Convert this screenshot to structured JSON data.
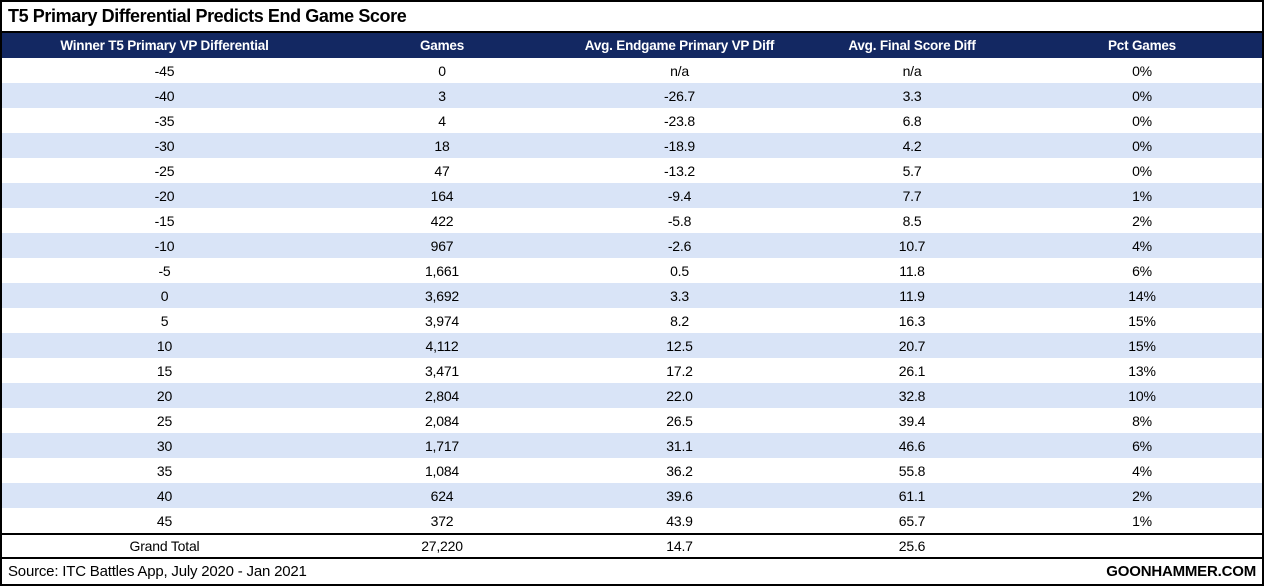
{
  "page": {
    "title_bar": "T5 Primary Differential Predicts End Game Score"
  },
  "colors": {
    "header_bg": "#132862",
    "header_text": "#ffffff",
    "row_alt_bg": "#d9e4f7",
    "border": "#000000"
  },
  "footer": {
    "source": "Source: ITC Battles App, July 2020 - Jan 2021",
    "brand": "GOONHAMMER.COM"
  },
  "chart_data": {
    "type": "table",
    "title": "T5 Primary Differential Predicts End Game Score",
    "columns": [
      "Winner T5 Primary VP Differential",
      "Games",
      "Avg. Endgame Primary VP Diff",
      "Avg. Final Score Diff",
      "Pct Games"
    ],
    "rows": [
      [
        "-45",
        "0",
        "n/a",
        "n/a",
        "0%"
      ],
      [
        "-40",
        "3",
        "-26.7",
        "3.3",
        "0%"
      ],
      [
        "-35",
        "4",
        "-23.8",
        "6.8",
        "0%"
      ],
      [
        "-30",
        "18",
        "-18.9",
        "4.2",
        "0%"
      ],
      [
        "-25",
        "47",
        "-13.2",
        "5.7",
        "0%"
      ],
      [
        "-20",
        "164",
        "-9.4",
        "7.7",
        "1%"
      ],
      [
        "-15",
        "422",
        "-5.8",
        "8.5",
        "2%"
      ],
      [
        "-10",
        "967",
        "-2.6",
        "10.7",
        "4%"
      ],
      [
        "-5",
        "1,661",
        "0.5",
        "11.8",
        "6%"
      ],
      [
        "0",
        "3,692",
        "3.3",
        "11.9",
        "14%"
      ],
      [
        "5",
        "3,974",
        "8.2",
        "16.3",
        "15%"
      ],
      [
        "10",
        "4,112",
        "12.5",
        "20.7",
        "15%"
      ],
      [
        "15",
        "3,471",
        "17.2",
        "26.1",
        "13%"
      ],
      [
        "20",
        "2,804",
        "22.0",
        "32.8",
        "10%"
      ],
      [
        "25",
        "2,084",
        "26.5",
        "39.4",
        "8%"
      ],
      [
        "30",
        "1,717",
        "31.1",
        "46.6",
        "6%"
      ],
      [
        "35",
        "1,084",
        "36.2",
        "55.8",
        "4%"
      ],
      [
        "40",
        "624",
        "39.6",
        "61.1",
        "2%"
      ],
      [
        "45",
        "372",
        "43.9",
        "65.7",
        "1%"
      ]
    ],
    "grand_total": [
      "Grand Total",
      "27,220",
      "14.7",
      "25.6",
      ""
    ]
  }
}
